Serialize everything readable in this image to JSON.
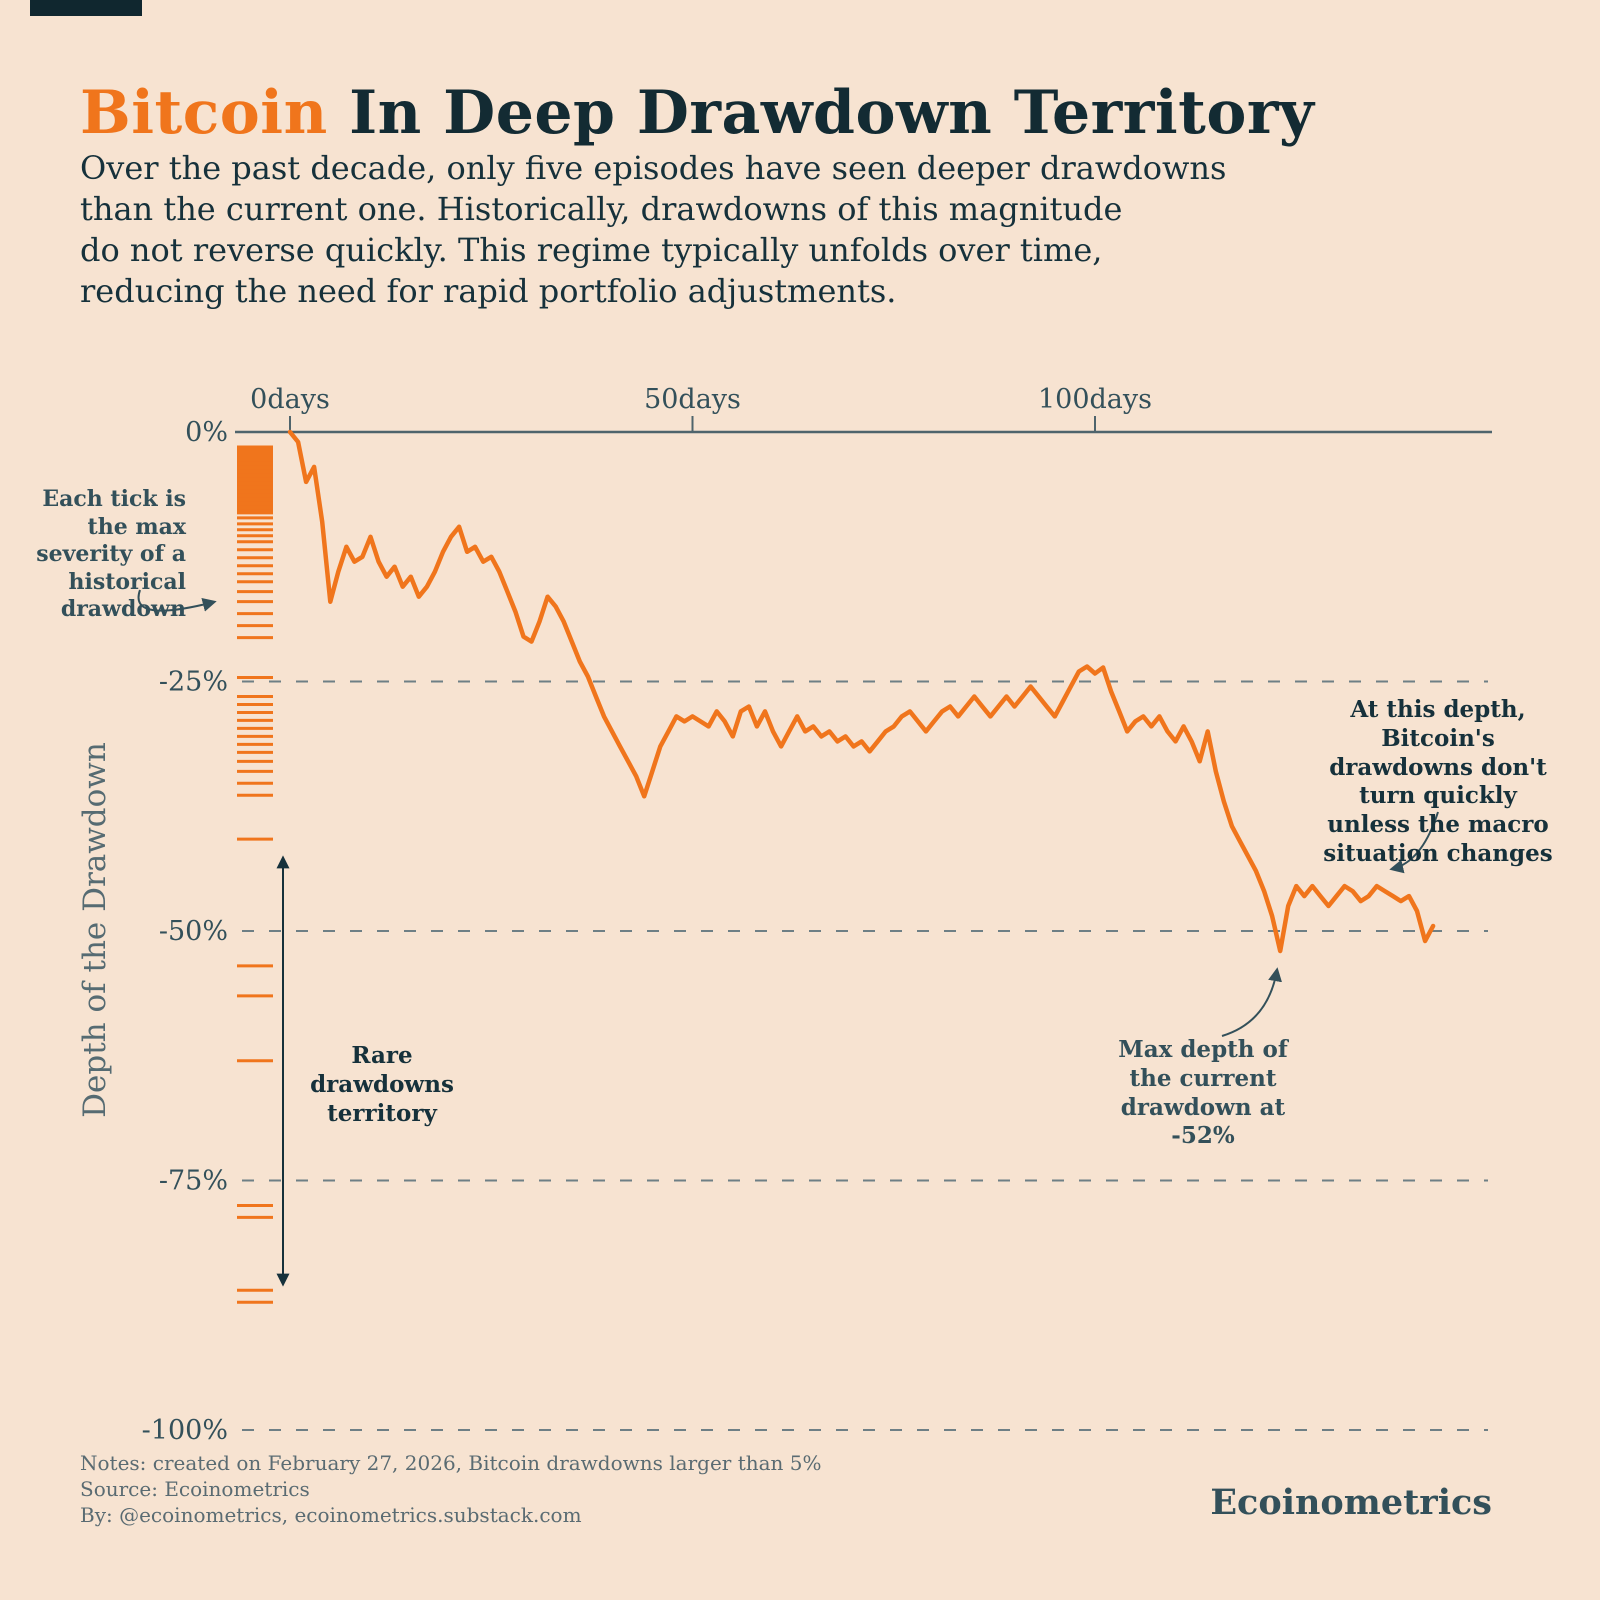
{
  "header": {
    "title_accent": "Bitcoin",
    "title_rest": " In Deep Drawdown Territory",
    "subtitle_lines": [
      "Over the past decade, only five episodes have seen deeper drawdowns",
      "than the current one. Historically, drawdowns of this magnitude",
      "do not reverse quickly. This regime typically unfolds over time,",
      "reducing the need for rapid portfolio adjustments."
    ]
  },
  "annotations": {
    "each_tick": "Each tick is the max severity of a historical drawdown",
    "rare_territory": "Rare drawdowns territory",
    "at_this_depth": "At this depth, Bitcoin's drawdowns don't turn quickly unless the macro situation changes",
    "max_depth": "Max depth of the current drawdown at -52%"
  },
  "notes": {
    "lines": [
      "Notes: created on February 27, 2026, Bitcoin drawdowns larger than 5%",
      "Source: Ecoinometrics",
      "By: @ecoinometrics, ecoinometrics.substack.com"
    ]
  },
  "footer": {
    "logo": "Ecoinometrics"
  },
  "colors": {
    "accent": "#f0751c",
    "ink": "#16313b",
    "muted": "#33505a",
    "background": "#f7e3d1"
  },
  "chart_data": {
    "type": "line",
    "title": "Bitcoin In Deep Drawdown Territory",
    "xlabel": "",
    "ylabel": "Depth of the Drawdown",
    "ylim": [
      0,
      -100
    ],
    "grid": "dashed horizontal at -25, -50, -75, -100",
    "legend": "none",
    "max_depth_pct": -52,
    "x_ticks": [
      {
        "day": 0,
        "label": "0days"
      },
      {
        "day": 50,
        "label": "50days"
      },
      {
        "day": 100,
        "label": "100days"
      }
    ],
    "y_ticks": [
      {
        "pct": 0,
        "label": "0%"
      },
      {
        "pct": -25,
        "label": "-25%"
      },
      {
        "pct": -50,
        "label": "-50%"
      },
      {
        "pct": -75,
        "label": "-75%"
      },
      {
        "pct": -100,
        "label": "-100%"
      }
    ],
    "historical_ticks": [
      -1.6,
      -2.0,
      -2.4,
      -2.8,
      -3.2,
      -3.6,
      -4.0,
      -4.4,
      -4.8,
      -5.2,
      -5.6,
      -6.0,
      -6.4,
      -6.8,
      -7.2,
      -7.6,
      -8.0,
      -8.6,
      -9.2,
      -9.8,
      -10.4,
      -11.0,
      -11.8,
      -12.6,
      -13.4,
      -14.2,
      -15.0,
      -16.0,
      -17.0,
      -18.2,
      -19.4,
      -20.6,
      -24.6,
      -26.5,
      -27.3,
      -28.1,
      -28.9,
      -29.7,
      -30.5,
      -31.3,
      -32.1,
      -33.0,
      -34.0,
      -35.2,
      -36.4,
      -40.8,
      -53.5,
      -56.5,
      -63.0,
      -77.5,
      -78.7,
      -86.0,
      -87.2
    ],
    "series": [
      {
        "name": "Current Bitcoin drawdown",
        "points": [
          [
            0,
            0
          ],
          [
            1,
            -1
          ],
          [
            2,
            -5
          ],
          [
            3,
            -3.5
          ],
          [
            4,
            -9
          ],
          [
            5,
            -17
          ],
          [
            6,
            -14
          ],
          [
            7,
            -11.5
          ],
          [
            8,
            -13
          ],
          [
            9,
            -12.5
          ],
          [
            10,
            -10.5
          ],
          [
            11,
            -13
          ],
          [
            12,
            -14.5
          ],
          [
            13,
            -13.5
          ],
          [
            14,
            -15.5
          ],
          [
            15,
            -14.5
          ],
          [
            16,
            -16.5
          ],
          [
            17,
            -15.5
          ],
          [
            18,
            -14
          ],
          [
            19,
            -12
          ],
          [
            20,
            -10.5
          ],
          [
            21,
            -9.5
          ],
          [
            22,
            -12
          ],
          [
            23,
            -11.5
          ],
          [
            24,
            -13
          ],
          [
            25,
            -12.5
          ],
          [
            26,
            -14
          ],
          [
            27,
            -16
          ],
          [
            28,
            -18
          ],
          [
            29,
            -20.5
          ],
          [
            30,
            -21
          ],
          [
            31,
            -19
          ],
          [
            32,
            -16.5
          ],
          [
            33,
            -17.5
          ],
          [
            34,
            -19
          ],
          [
            35,
            -21
          ],
          [
            36,
            -23
          ],
          [
            37,
            -24.5
          ],
          [
            38,
            -26.5
          ],
          [
            39,
            -28.5
          ],
          [
            40,
            -30
          ],
          [
            41,
            -31.5
          ],
          [
            42,
            -33
          ],
          [
            43,
            -34.5
          ],
          [
            44,
            -36.5
          ],
          [
            45,
            -34
          ],
          [
            46,
            -31.5
          ],
          [
            47,
            -30
          ],
          [
            48,
            -28.5
          ],
          [
            49,
            -29
          ],
          [
            50,
            -28.5
          ],
          [
            51,
            -29
          ],
          [
            52,
            -29.5
          ],
          [
            53,
            -28
          ],
          [
            54,
            -29
          ],
          [
            55,
            -30.5
          ],
          [
            56,
            -28
          ],
          [
            57,
            -27.5
          ],
          [
            58,
            -29.5
          ],
          [
            59,
            -28
          ],
          [
            60,
            -30
          ],
          [
            61,
            -31.5
          ],
          [
            62,
            -30
          ],
          [
            63,
            -28.5
          ],
          [
            64,
            -30
          ],
          [
            65,
            -29.5
          ],
          [
            66,
            -30.5
          ],
          [
            67,
            -30
          ],
          [
            68,
            -31
          ],
          [
            69,
            -30.5
          ],
          [
            70,
            -31.5
          ],
          [
            71,
            -31
          ],
          [
            72,
            -32
          ],
          [
            73,
            -31
          ],
          [
            74,
            -30
          ],
          [
            75,
            -29.5
          ],
          [
            76,
            -28.5
          ],
          [
            77,
            -28
          ],
          [
            78,
            -29
          ],
          [
            79,
            -30
          ],
          [
            80,
            -29
          ],
          [
            81,
            -28
          ],
          [
            82,
            -27.5
          ],
          [
            83,
            -28.5
          ],
          [
            84,
            -27.5
          ],
          [
            85,
            -26.5
          ],
          [
            86,
            -27.5
          ],
          [
            87,
            -28.5
          ],
          [
            88,
            -27.5
          ],
          [
            89,
            -26.5
          ],
          [
            90,
            -27.5
          ],
          [
            91,
            -26.5
          ],
          [
            92,
            -25.5
          ],
          [
            93,
            -26.5
          ],
          [
            94,
            -27.5
          ],
          [
            95,
            -28.5
          ],
          [
            96,
            -27
          ],
          [
            97,
            -25.5
          ],
          [
            98,
            -24
          ],
          [
            99,
            -23.5
          ],
          [
            100,
            -24.2
          ],
          [
            101,
            -23.6
          ],
          [
            102,
            -26
          ],
          [
            103,
            -28
          ],
          [
            104,
            -30
          ],
          [
            105,
            -29
          ],
          [
            106,
            -28.5
          ],
          [
            107,
            -29.5
          ],
          [
            108,
            -28.5
          ],
          [
            109,
            -30
          ],
          [
            110,
            -31
          ],
          [
            111,
            -29.5
          ],
          [
            112,
            -31
          ],
          [
            113,
            -33
          ],
          [
            114,
            -30
          ],
          [
            115,
            -34
          ],
          [
            116,
            -37
          ],
          [
            117,
            -39.5
          ],
          [
            118,
            -41
          ],
          [
            119,
            -42.5
          ],
          [
            120,
            -44
          ],
          [
            121,
            -46
          ],
          [
            122,
            -48.5
          ],
          [
            123,
            -52
          ],
          [
            124,
            -47.5
          ],
          [
            125,
            -45.5
          ],
          [
            126,
            -46.5
          ],
          [
            127,
            -45.5
          ],
          [
            128,
            -46.5
          ],
          [
            129,
            -47.5
          ],
          [
            130,
            -46.5
          ],
          [
            131,
            -45.5
          ],
          [
            132,
            -46
          ],
          [
            133,
            -47
          ],
          [
            134,
            -46.5
          ],
          [
            135,
            -45.5
          ],
          [
            136,
            -46
          ],
          [
            137,
            -46.5
          ],
          [
            138,
            -47
          ],
          [
            139,
            -46.5
          ],
          [
            140,
            -48
          ],
          [
            141,
            -51
          ],
          [
            142,
            -49.5
          ]
        ]
      }
    ]
  }
}
